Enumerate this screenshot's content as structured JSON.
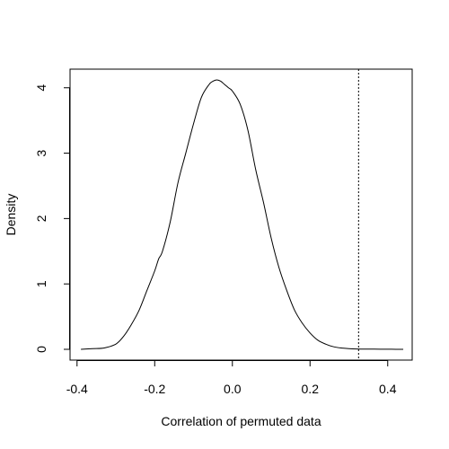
{
  "chart_data": {
    "type": "line",
    "title": "",
    "xlabel": "Correlation of permuted data",
    "ylabel": "Density",
    "xlim": [
      -0.418,
      0.463
    ],
    "ylim": [
      -0.165,
      4.285
    ],
    "x_ticks": [
      -0.4,
      -0.2,
      0.0,
      0.2,
      0.4
    ],
    "x_tick_labels": [
      "-0.4",
      "-0.2",
      "0.0",
      "0.2",
      "0.4"
    ],
    "y_ticks": [
      0,
      1,
      2,
      3,
      4
    ],
    "y_tick_labels": [
      "0",
      "1",
      "2",
      "3",
      "4"
    ],
    "grid": false,
    "series": [
      {
        "name": "density",
        "x": [
          -0.39,
          -0.36,
          -0.33,
          -0.3,
          -0.28,
          -0.26,
          -0.24,
          -0.22,
          -0.2,
          -0.19,
          -0.18,
          -0.16,
          -0.14,
          -0.12,
          -0.1,
          -0.08,
          -0.06,
          -0.05,
          -0.04,
          -0.03,
          -0.02,
          -0.01,
          0.0,
          0.02,
          0.04,
          0.06,
          0.08,
          0.1,
          0.12,
          0.14,
          0.16,
          0.18,
          0.2,
          0.22,
          0.24,
          0.26,
          0.28,
          0.3,
          0.32,
          0.35,
          0.38,
          0.41,
          0.44
        ],
        "y": [
          0.0,
          0.01,
          0.02,
          0.08,
          0.2,
          0.38,
          0.6,
          0.9,
          1.2,
          1.38,
          1.5,
          1.95,
          2.55,
          3.0,
          3.45,
          3.85,
          4.05,
          4.1,
          4.12,
          4.1,
          4.05,
          4.0,
          3.95,
          3.75,
          3.35,
          2.75,
          2.25,
          1.7,
          1.25,
          0.9,
          0.6,
          0.4,
          0.25,
          0.14,
          0.08,
          0.04,
          0.02,
          0.01,
          0.005,
          0.003,
          0.002,
          0.001,
          0.0
        ]
      }
    ],
    "vline": {
      "x": 0.325,
      "style": "dashed"
    }
  }
}
